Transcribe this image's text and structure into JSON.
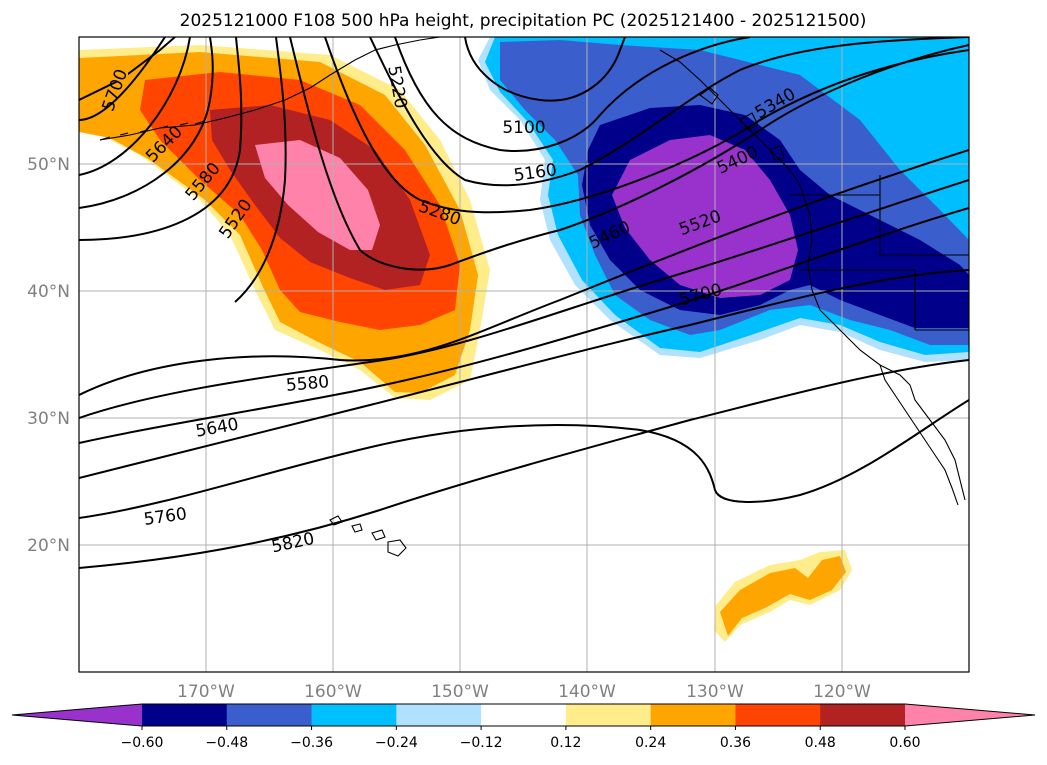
{
  "title": "2025121000 F108 500 hPa height, precipitation PC (2025121400 - 2025121500)",
  "map": {
    "lon_range": [
      -180,
      -110
    ],
    "lat_range": [
      10,
      60
    ],
    "lon_ticks": [
      {
        "value": -170,
        "label": "170°W"
      },
      {
        "value": -160,
        "label": "160°W"
      },
      {
        "value": -150,
        "label": "150°W"
      },
      {
        "value": -140,
        "label": "140°W"
      },
      {
        "value": -130,
        "label": "130°W"
      },
      {
        "value": -120,
        "label": "120°W"
      }
    ],
    "lat_ticks": [
      {
        "value": 20,
        "label": "20°N"
      },
      {
        "value": 30,
        "label": "30°N"
      },
      {
        "value": 40,
        "label": "40°N"
      },
      {
        "value": 50,
        "label": "50°N"
      }
    ],
    "grid": true
  },
  "height_contour_labels": [
    "5100",
    "5160",
    "5220",
    "5280",
    "5340",
    "5460",
    "5520",
    "5520",
    "5580",
    "5580",
    "5640",
    "5640",
    "5700",
    "5700",
    "5760",
    "5820",
    "5400"
  ],
  "colorbar": {
    "extend": "both",
    "bins": [
      {
        "color": "#9932CC"
      },
      {
        "color": "#00008B"
      },
      {
        "color": "#3A5FCD"
      },
      {
        "color": "#00BFFF"
      },
      {
        "color": "#B0E2FF"
      },
      {
        "color": "#FFFFFF"
      },
      {
        "color": "#FFEC8B"
      },
      {
        "color": "#FFA500"
      },
      {
        "color": "#FF4500"
      },
      {
        "color": "#B22222"
      },
      {
        "color": "#FF82AB"
      }
    ],
    "tick_labels": [
      "−0.60",
      "−0.48",
      "−0.36",
      "−0.24",
      "−0.12",
      "0.12",
      "0.24",
      "0.36",
      "0.48",
      "0.60"
    ]
  }
}
